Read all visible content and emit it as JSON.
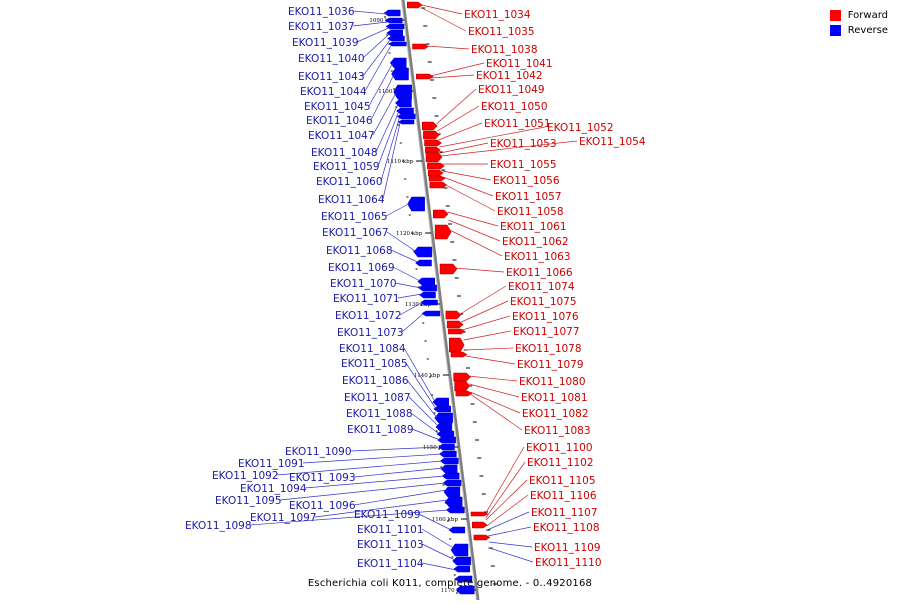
{
  "legend": {
    "items": [
      {
        "label": "Forward",
        "color": "#ff0000"
      },
      {
        "label": "Reverse",
        "color": "#0000ff"
      }
    ]
  },
  "caption": "Escherichia coli K011, complete genome. - 0..4920168",
  "colors": {
    "forward": "#ff0000",
    "reverse": "#0000ff",
    "backbone": "#7f7f7f",
    "label_forward": "#cc0000",
    "label_reverse": "#1a1aa8"
  },
  "axis_ticks": [
    "1090 kbp",
    "1100 kbp",
    "1110 kbp",
    "1120 kbp",
    "1130 kbp",
    "1140 kbp",
    "1150 kbp",
    "1160 kbp",
    "1170 kbp"
  ],
  "genes_left": [
    "EKO11_1036",
    "EKO11_1037",
    "EKO11_1039",
    "EKO11_1040",
    "EKO11_1043",
    "EKO11_1044",
    "EKO11_1045",
    "EKO11_1046",
    "EKO11_1047",
    "EKO11_1048",
    "EKO11_1059",
    "EKO11_1060",
    "EKO11_1064",
    "EKO11_1065",
    "EKO11_1067",
    "EKO11_1068",
    "EKO11_1069",
    "EKO11_1070",
    "EKO11_1071",
    "EKO11_1072",
    "EKO11_1073",
    "EKO11_1084",
    "EKO11_1085",
    "EKO11_1086",
    "EKO11_1087",
    "EKO11_1088",
    "EKO11_1089",
    "EKO11_1090",
    "EKO11_1091",
    "EKO11_1092",
    "EKO11_1093",
    "EKO11_1094",
    "EKO11_1095",
    "EKO11_1096",
    "EKO11_1097",
    "EKO11_1098",
    "EKO11_1099",
    "EKO11_1101",
    "EKO11_1103",
    "EKO11_1104"
  ],
  "genes_right": [
    "EKO11_1034",
    "EKO11_1035",
    "EKO11_1038",
    "EKO11_1041",
    "EKO11_1042",
    "EKO11_1049",
    "EKO11_1050",
    "EKO11_1051",
    "EKO11_1052",
    "EKO11_1053",
    "EKO11_1054",
    "EKO11_1055",
    "EKO11_1056",
    "EKO11_1057",
    "EKO11_1058",
    "EKO11_1061",
    "EKO11_1062",
    "EKO11_1063",
    "EKO11_1066",
    "EKO11_1074",
    "EKO11_1075",
    "EKO11_1076",
    "EKO11_1077",
    "EKO11_1078",
    "EKO11_1079",
    "EKO11_1080",
    "EKO11_1081",
    "EKO11_1082",
    "EKO11_1083",
    "EKO11_1100",
    "EKO11_1102",
    "EKO11_1105",
    "EKO11_1106",
    "EKO11_1107",
    "EKO11_1108",
    "EKO11_1109",
    "EKO11_1110"
  ]
}
